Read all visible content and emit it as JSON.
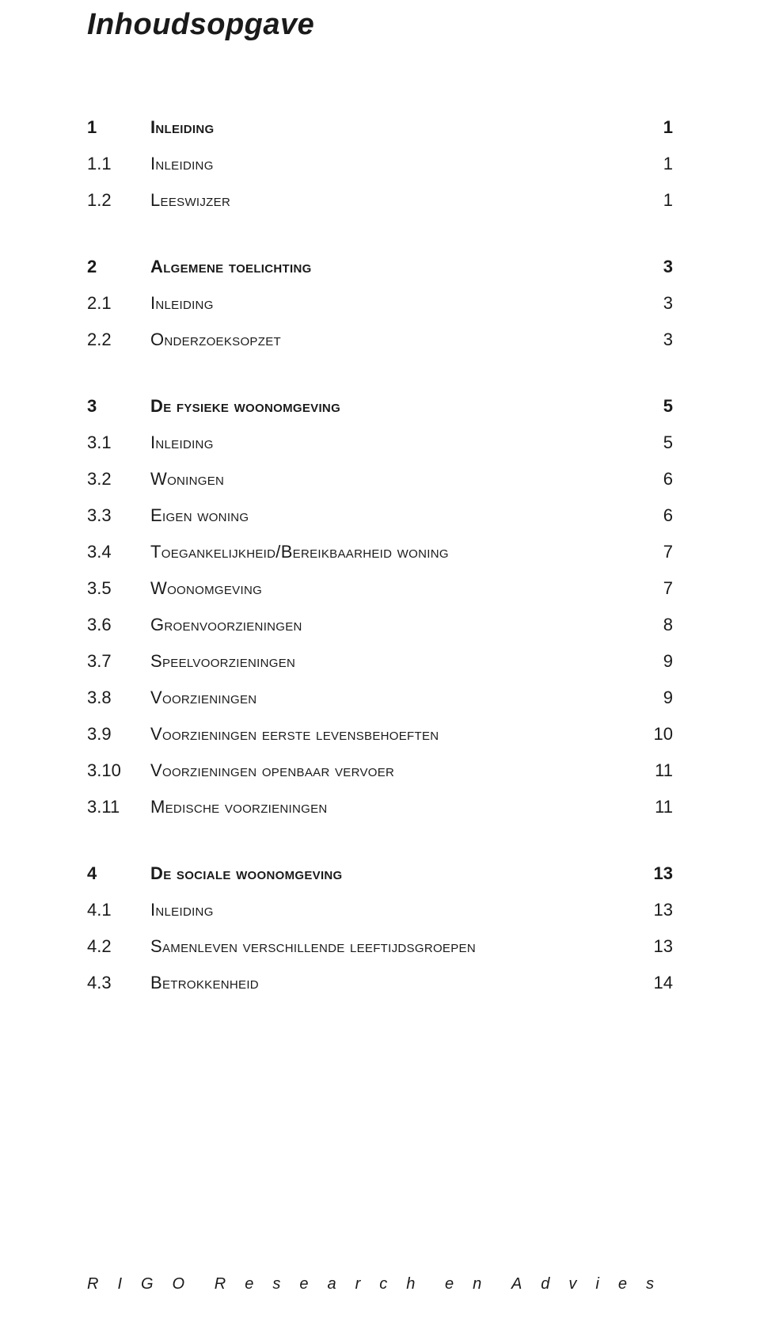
{
  "title": "Inhoudsopgave",
  "colors": {
    "text": "#1a1a1a",
    "background": "#ffffff"
  },
  "typography": {
    "title_fontsize": 38,
    "body_fontsize": 22,
    "footer_fontsize": 20,
    "font_family": "Verdana, Geneva, sans-serif"
  },
  "toc": [
    {
      "type": "chapter",
      "num": "1",
      "label": "Inleiding",
      "page": "1"
    },
    {
      "type": "section",
      "num": "1.1",
      "label": "Inleiding",
      "page": "1"
    },
    {
      "type": "section",
      "num": "1.2",
      "label": "Leeswijzer",
      "page": "1"
    },
    {
      "type": "chapter",
      "num": "2",
      "label": "Algemene toelichting",
      "page": "3"
    },
    {
      "type": "section",
      "num": "2.1",
      "label": "Inleiding",
      "page": "3"
    },
    {
      "type": "section",
      "num": "2.2",
      "label": "Onderzoeksopzet",
      "page": "3"
    },
    {
      "type": "chapter",
      "num": "3",
      "label": "De fysieke woonomgeving",
      "page": "5"
    },
    {
      "type": "section",
      "num": "3.1",
      "label": "Inleiding",
      "page": "5"
    },
    {
      "type": "section",
      "num": "3.2",
      "label": "Woningen",
      "page": "6"
    },
    {
      "type": "section",
      "num": "3.3",
      "label": "Eigen woning",
      "page": "6"
    },
    {
      "type": "section",
      "num": "3.4",
      "label": "Toegankelijkheid/Bereikbaarheid woning",
      "page": "7"
    },
    {
      "type": "section",
      "num": "3.5",
      "label": "Woonomgeving",
      "page": "7"
    },
    {
      "type": "section",
      "num": "3.6",
      "label": "Groenvoorzieningen",
      "page": "8"
    },
    {
      "type": "section",
      "num": "3.7",
      "label": "Speelvoorzieningen",
      "page": "9"
    },
    {
      "type": "section",
      "num": "3.8",
      "label": "Voorzieningen",
      "page": "9"
    },
    {
      "type": "section",
      "num": "3.9",
      "label": "Voorzieningen eerste levensbehoeften",
      "page": "10"
    },
    {
      "type": "section",
      "num": "3.10",
      "label": "Voorzieningen openbaar vervoer",
      "page": "11"
    },
    {
      "type": "section",
      "num": "3.11",
      "label": "Medische voorzieningen",
      "page": "11"
    },
    {
      "type": "chapter",
      "num": "4",
      "label": "De sociale woonomgeving",
      "page": "13"
    },
    {
      "type": "section",
      "num": "4.1",
      "label": "Inleiding",
      "page": "13"
    },
    {
      "type": "section",
      "num": "4.2",
      "label": "Samenleven verschillende leeftijdsgroepen",
      "page": "13"
    },
    {
      "type": "section",
      "num": "4.3",
      "label": "Betrokkenheid",
      "page": "14"
    }
  ],
  "footer": {
    "part1": "RIGO",
    "part2": "Research",
    "part3": "en",
    "part4": "Advies"
  }
}
